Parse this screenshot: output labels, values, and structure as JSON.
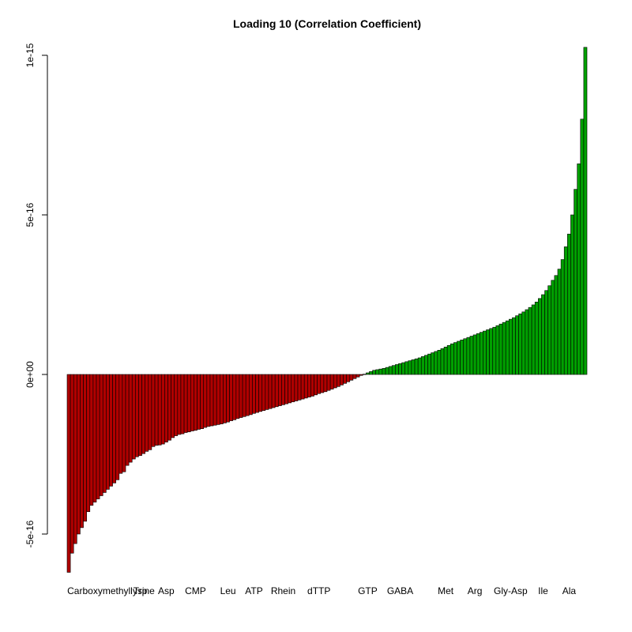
{
  "chart_data": {
    "type": "bar",
    "title": "Loading 10 (Correlation Coefficient)",
    "xlabel": "",
    "ylabel": "",
    "ylim": [
      -6.2e-16,
      1.02e-15
    ],
    "y_ticks": [
      {
        "value": -5e-16,
        "label": "-5e-16"
      },
      {
        "value": 0,
        "label": "0e+00"
      },
      {
        "value": 5e-16,
        "label": "5e-16"
      },
      {
        "value": 1e-15,
        "label": "1e-15"
      }
    ],
    "grid": false,
    "legend": "none",
    "colors": {
      "negative": "#b00000",
      "positive": "#00a000",
      "outline": "#000000"
    },
    "bar_count": 160,
    "x_labels": [
      {
        "bar_index": 13,
        "label": "Carboxymethyllysine"
      },
      {
        "bar_index": 22,
        "label": "Trp"
      },
      {
        "bar_index": 30,
        "label": "Asp"
      },
      {
        "bar_index": 39,
        "label": "CMP"
      },
      {
        "bar_index": 49,
        "label": "Leu"
      },
      {
        "bar_index": 57,
        "label": "ATP"
      },
      {
        "bar_index": 66,
        "label": "Rhein"
      },
      {
        "bar_index": 77,
        "label": "dTTP"
      },
      {
        "bar_index": 92,
        "label": "GTP"
      },
      {
        "bar_index": 102,
        "label": "GABA"
      },
      {
        "bar_index": 116,
        "label": "Met"
      },
      {
        "bar_index": 125,
        "label": "Arg"
      },
      {
        "bar_index": 136,
        "label": "Gly-Asp"
      },
      {
        "bar_index": 146,
        "label": "Ile"
      },
      {
        "bar_index": 154,
        "label": "Ala"
      }
    ],
    "values": [
      -6.2e-16,
      -5.6e-16,
      -5.3e-16,
      -5e-16,
      -4.8e-16,
      -4.6e-16,
      -4.3e-16,
      -4.1e-16,
      -4e-16,
      -3.9e-16,
      -3.8e-16,
      -3.7e-16,
      -3.6e-16,
      -3.5e-16,
      -3.4e-16,
      -3.3e-16,
      -3.1e-16,
      -3.05e-16,
      -2.85e-16,
      -2.75e-16,
      -2.65e-16,
      -2.58e-16,
      -2.54e-16,
      -2.48e-16,
      -2.41e-16,
      -2.36e-16,
      -2.26e-16,
      -2.22e-16,
      -2.21e-16,
      -2.18e-16,
      -2.12e-16,
      -2.06e-16,
      -1.98e-16,
      -1.92e-16,
      -1.88e-16,
      -1.86e-16,
      -1.82e-16,
      -1.8e-16,
      -1.77e-16,
      -1.75e-16,
      -1.72e-16,
      -1.7e-16,
      -1.66e-16,
      -1.63e-16,
      -1.61e-16,
      -1.59e-16,
      -1.57e-16,
      -1.55e-16,
      -1.52e-16,
      -1.49e-16,
      -1.45e-16,
      -1.42e-16,
      -1.38e-16,
      -1.35e-16,
      -1.32e-16,
      -1.29e-16,
      -1.26e-16,
      -1.22e-16,
      -1.19e-16,
      -1.16e-16,
      -1.13e-16,
      -1.1e-16,
      -1.07e-16,
      -1.04e-16,
      -1.01e-16,
      -9.8e-17,
      -9.5e-17,
      -9.2e-17,
      -8.9e-17,
      -8.6e-17,
      -8.3e-17,
      -8e-17,
      -7.7e-17,
      -7.4e-17,
      -7.1e-17,
      -6.8e-17,
      -6.4e-17,
      -6e-17,
      -5.7e-17,
      -5.4e-17,
      -5e-17,
      -4.6e-17,
      -4.2e-17,
      -3.8e-17,
      -3.3e-17,
      -2.8e-17,
      -2.3e-17,
      -1.8e-17,
      -1.3e-17,
      -8e-18,
      -3e-18,
      1e-18,
      5e-18,
      9e-18,
      1.3e-17,
      1.5e-17,
      1.7e-17,
      1.9e-17,
      2.2e-17,
      2.5e-17,
      2.8e-17,
      3.1e-17,
      3.4e-17,
      3.7e-17,
      4e-17,
      4.3e-17,
      4.6e-17,
      4.9e-17,
      5.2e-17,
      5.6e-17,
      6e-17,
      6.4e-17,
      6.8e-17,
      7.2e-17,
      7.6e-17,
      8.1e-17,
      8.6e-17,
      9.1e-17,
      9.6e-17,
      1e-16,
      1.04e-16,
      1.08e-16,
      1.12e-16,
      1.16e-16,
      1.2e-16,
      1.24e-16,
      1.28e-16,
      1.32e-16,
      1.36e-16,
      1.4e-16,
      1.44e-16,
      1.48e-16,
      1.53e-16,
      1.58e-16,
      1.63e-16,
      1.68e-16,
      1.73e-16,
      1.78e-16,
      1.84e-16,
      1.9e-16,
      1.96e-16,
      2.03e-16,
      2.1e-16,
      2.18e-16,
      2.27e-16,
      2.38e-16,
      2.5e-16,
      2.63e-16,
      2.78e-16,
      2.95e-16,
      3.1e-16,
      3.3e-16,
      3.6e-16,
      4e-16,
      4.4e-16,
      5e-16,
      5.8e-16,
      6.6e-16,
      8e-16,
      1.025e-15
    ]
  }
}
